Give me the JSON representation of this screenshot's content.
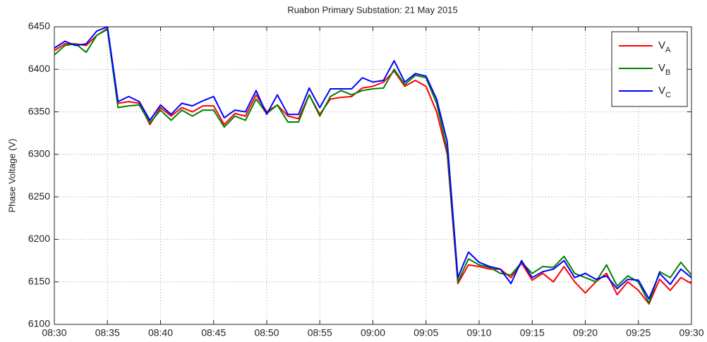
{
  "chart_data": {
    "type": "line",
    "title": "Ruabon Primary Substation: 21 May 2015",
    "y_label": "Phase Voltage (V)",
    "x": [
      "08:30",
      "08:31",
      "08:32",
      "08:33",
      "08:34",
      "08:35",
      "08:36",
      "08:37",
      "08:38",
      "08:39",
      "08:40",
      "08:41",
      "08:42",
      "08:43",
      "08:44",
      "08:45",
      "08:46",
      "08:47",
      "08:48",
      "08:49",
      "08:50",
      "08:51",
      "08:52",
      "08:53",
      "08:54",
      "08:55",
      "08:56",
      "08:57",
      "08:58",
      "08:59",
      "09:00",
      "09:01",
      "09:02",
      "09:03",
      "09:04",
      "09:05",
      "09:06",
      "09:07",
      "09:08",
      "09:09",
      "09:10",
      "09:11",
      "09:12",
      "09:13",
      "09:14",
      "09:15",
      "09:16",
      "09:17",
      "09:18",
      "09:19",
      "09:20",
      "09:21",
      "09:22",
      "09:23",
      "09:24",
      "09:25",
      "09:26",
      "09:27",
      "09:28",
      "09:29",
      "09:30"
    ],
    "xticks": [
      "08:30",
      "08:35",
      "08:40",
      "08:45",
      "08:50",
      "08:55",
      "09:00",
      "09:05",
      "09:10",
      "09:15",
      "09:20",
      "09:25",
      "09:30"
    ],
    "ylim": [
      6100,
      6450
    ],
    "yticks": [
      6100,
      6150,
      6200,
      6250,
      6300,
      6350,
      6400,
      6450
    ],
    "grid": true,
    "legend": "top-right",
    "series": [
      {
        "name": "VA",
        "color": "#ff0000",
        "values": [
          6422,
          6430,
          6430,
          6428,
          6440,
          6448,
          6360,
          6362,
          6360,
          6335,
          6355,
          6345,
          6355,
          6350,
          6357,
          6357,
          6335,
          6348,
          6345,
          6370,
          6350,
          6358,
          6345,
          6342,
          6370,
          6347,
          6365,
          6367,
          6368,
          6378,
          6380,
          6385,
          6398,
          6380,
          6387,
          6380,
          6350,
          6300,
          6148,
          6170,
          6168,
          6165,
          6165,
          6155,
          6172,
          6152,
          6160,
          6150,
          6168,
          6150,
          6137,
          6150,
          6160,
          6135,
          6150,
          6140,
          6124,
          6153,
          6140,
          6155,
          6148
        ]
      },
      {
        "name": "VB",
        "color": "#008000",
        "values": [
          6417,
          6428,
          6430,
          6420,
          6440,
          6447,
          6355,
          6357,
          6358,
          6337,
          6352,
          6340,
          6352,
          6345,
          6352,
          6352,
          6332,
          6345,
          6340,
          6365,
          6348,
          6358,
          6338,
          6338,
          6370,
          6345,
          6368,
          6375,
          6370,
          6375,
          6377,
          6378,
          6400,
          6382,
          6393,
          6390,
          6360,
          6305,
          6150,
          6177,
          6170,
          6167,
          6160,
          6158,
          6173,
          6160,
          6168,
          6167,
          6180,
          6160,
          6155,
          6150,
          6170,
          6145,
          6157,
          6150,
          6125,
          6162,
          6155,
          6173,
          6158
        ]
      },
      {
        "name": "VC",
        "color": "#0000ff",
        "values": [
          6425,
          6433,
          6428,
          6430,
          6445,
          6450,
          6362,
          6368,
          6362,
          6340,
          6358,
          6347,
          6360,
          6357,
          6363,
          6368,
          6343,
          6352,
          6350,
          6375,
          6347,
          6370,
          6347,
          6347,
          6378,
          6355,
          6377,
          6377,
          6377,
          6390,
          6385,
          6387,
          6410,
          6385,
          6395,
          6392,
          6365,
          6315,
          6155,
          6185,
          6173,
          6168,
          6165,
          6148,
          6175,
          6155,
          6162,
          6165,
          6175,
          6155,
          6160,
          6153,
          6157,
          6142,
          6153,
          6152,
          6130,
          6160,
          6147,
          6165,
          6155
        ]
      }
    ]
  }
}
